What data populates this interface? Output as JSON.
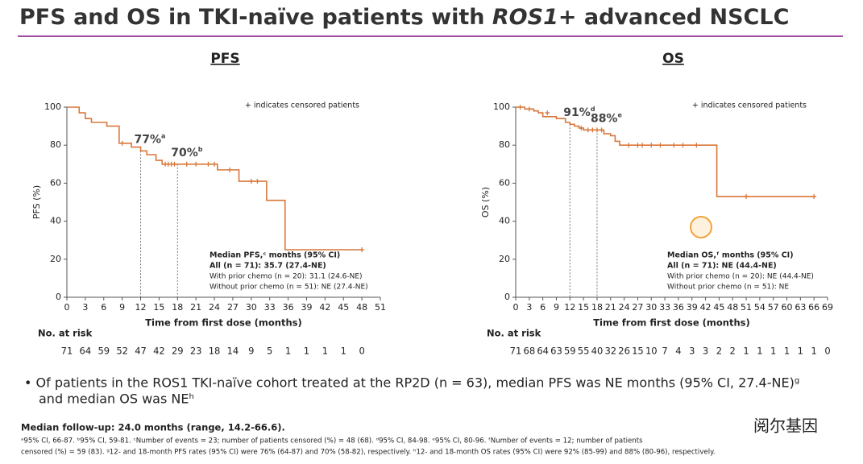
{
  "title_parts": [
    "PFS and OS in TKI-naïve patients with ",
    "ROS1",
    "+ advanced NSCLC"
  ],
  "bullet": [
    "• Of patients in the ROS1 TKI-naïve cohort treated at the RP2D (n = 63), median PFS was NE months (95% CI, 27.4-NE)ᵍ",
    "and median OS was NEʰ"
  ],
  "follow_up": "Median follow-up: 24.0 months (range, 14.2-66.6).",
  "footnotes": [
    "ᵃ95% CI, 66-87. ᵇ95% CI, 59-81. ᶜNumber of events = 23; number of patients censored (%) = 48 (68). ᵈ95% CI, 84-98. ᵉ95% CI, 80-96. ᶠNumber of events = 12; number of patients",
    "censored (%) = 59 (83). ᵍ12- and 18-month PFS rates (95% CI) were 76% (64-87) and 70% (58-82), respectively. ʰ12- and 18-month OS rates (95% CI) were 92% (85-99) and 88% (80-96), respectively."
  ],
  "watermark": "阅尔基因",
  "chart_data": [
    {
      "type": "line",
      "heading": "PFS",
      "note": "+ indicates censored patients",
      "ylabel": "PFS (%)",
      "xlabel": "Time from first dose (months)",
      "xlim": [
        0,
        51
      ],
      "ylim": [
        0,
        100
      ],
      "xticks": [
        0,
        3,
        6,
        9,
        12,
        15,
        18,
        21,
        24,
        27,
        30,
        33,
        36,
        39,
        42,
        45,
        48,
        51
      ],
      "yticks": [
        0,
        20,
        40,
        60,
        80,
        100
      ],
      "series": [
        {
          "color": "#d9773a",
          "x": [
            0,
            2,
            2,
            3,
            3,
            4,
            4,
            6.5,
            6.5,
            8.5,
            8.5,
            10.5,
            10.5,
            12,
            12,
            13,
            13,
            14.5,
            14.5,
            15.5,
            15.5,
            24.5,
            24.5,
            28,
            28,
            32.5,
            32.5,
            35.5,
            35.5,
            48
          ],
          "values": [
            100,
            100,
            97,
            97,
            94,
            94,
            92,
            92,
            90,
            90,
            81,
            81,
            79,
            79,
            77,
            77,
            75,
            75,
            72,
            72,
            70,
            70,
            67,
            67,
            61,
            61,
            51,
            51,
            25,
            25
          ]
        }
      ],
      "censored": {
        "x": [
          9,
          16,
          16.5,
          17,
          17.5,
          19.5,
          21,
          23,
          24,
          26.5,
          30,
          31,
          48
        ],
        "values": [
          81,
          70,
          70,
          70,
          70,
          70,
          70,
          70,
          70,
          67,
          61,
          61,
          25
        ]
      },
      "annotations": [
        {
          "x": 12,
          "value": 77,
          "label": "77%",
          "sup": "a"
        },
        {
          "x": 18,
          "value": 70,
          "label": "70%",
          "sup": "b"
        }
      ],
      "legend_lines": [
        "Median PFS,ᶜ months (95% CI)",
        "All (n = 71): 35.7 (27.4-NE)",
        "With prior chemo (n = 20): 31.1 (24.6-NE)",
        "Without prior chemo (n = 51): NE (27.4-NE)"
      ],
      "risk_label": "No. at risk",
      "at_risk": [
        71,
        64,
        59,
        52,
        47,
        42,
        29,
        23,
        18,
        14,
        9,
        5,
        1,
        1,
        1,
        1,
        0
      ]
    },
    {
      "type": "line",
      "heading": "OS",
      "note": "+ indicates censored patients",
      "ylabel": "OS (%)",
      "xlabel": "Time from first dose (months)",
      "xlim": [
        0,
        69
      ],
      "ylim": [
        0,
        100
      ],
      "xticks": [
        0,
        3,
        6,
        9,
        12,
        15,
        18,
        21,
        24,
        27,
        30,
        33,
        36,
        39,
        42,
        45,
        48,
        51,
        54,
        57,
        60,
        63,
        66,
        69
      ],
      "yticks": [
        0,
        20,
        40,
        60,
        80,
        100
      ],
      "series": [
        {
          "color": "#d9773a",
          "x": [
            0,
            2,
            2,
            4,
            4,
            5,
            5,
            6,
            6,
            9,
            9,
            11,
            11,
            12,
            12,
            13,
            13,
            14,
            14,
            15,
            15,
            19.5,
            19.5,
            21,
            21,
            22,
            22,
            23,
            23,
            44.5,
            44.5,
            66
          ],
          "values": [
            100,
            100,
            99,
            99,
            98,
            98,
            97,
            97,
            95,
            95,
            94,
            94,
            92,
            92,
            91,
            91,
            90,
            90,
            89,
            89,
            88,
            88,
            86,
            86,
            85,
            85,
            82,
            82,
            80,
            80,
            53,
            53
          ]
        }
      ],
      "censored": {
        "x": [
          1,
          3,
          7,
          14.5,
          16,
          17,
          18,
          19,
          25,
          27,
          28,
          30,
          32,
          35,
          37,
          40,
          51,
          66
        ],
        "values": [
          100,
          99,
          97,
          89,
          88,
          88,
          88,
          88,
          80,
          80,
          80,
          80,
          80,
          80,
          80,
          80,
          53,
          53
        ]
      },
      "annotations": [
        {
          "x": 12,
          "value": 91,
          "label": "91%",
          "sup": "d"
        },
        {
          "x": 18,
          "value": 88,
          "label": "88%",
          "sup": "e"
        }
      ],
      "legend_lines": [
        "Median OS,ᶠ months (95% CI)",
        "All (n = 71): NE (44.4-NE)",
        "With prior chemo (n = 20): NE (44.4-NE)",
        "Without prior chemo (n = 51): NE"
      ],
      "risk_label": "No. at risk",
      "at_risk": [
        71,
        68,
        64,
        63,
        59,
        55,
        40,
        32,
        26,
        15,
        10,
        7,
        4,
        3,
        3,
        2,
        2,
        1,
        1,
        1,
        1,
        1,
        1,
        0
      ]
    }
  ]
}
